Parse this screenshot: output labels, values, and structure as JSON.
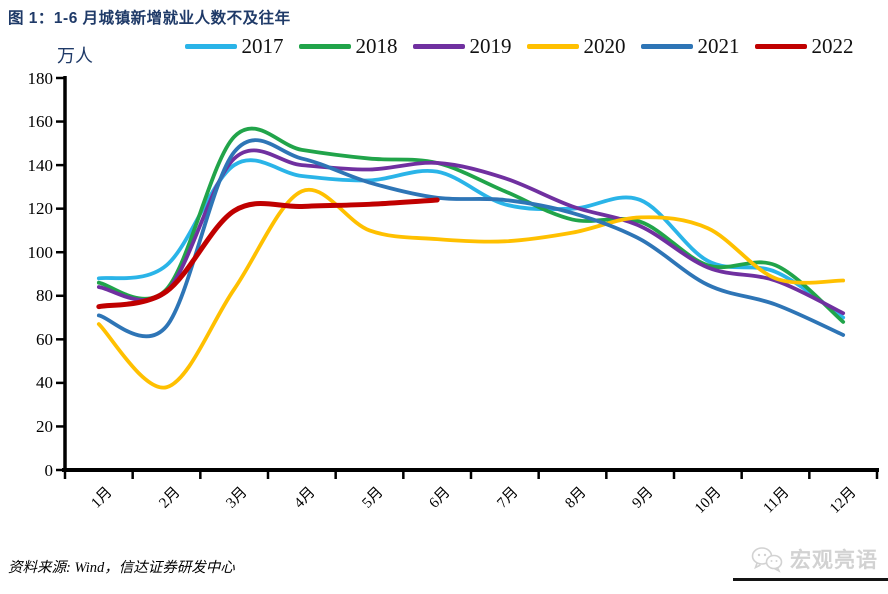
{
  "header": {
    "title": "图 1：1-6 月城镇新增就业人数不及往年"
  },
  "chart": {
    "unit_label": "万人",
    "y_ticks": [
      180,
      160,
      140,
      120,
      100,
      80,
      60,
      40,
      20,
      0
    ],
    "x_labels": [
      "1月",
      "2月",
      "3月",
      "4月",
      "5月",
      "6月",
      "7月",
      "8月",
      "9月",
      "10月",
      "11月",
      "12月"
    ]
  },
  "chart_data": {
    "type": "line",
    "title": "图 1：1-6 月城镇新增就业人数不及往年",
    "unit": "万人",
    "categories": [
      "1月",
      "2月",
      "3月",
      "4月",
      "5月",
      "6月",
      "7月",
      "8月",
      "9月",
      "10月",
      "11月",
      "12月"
    ],
    "series": [
      {
        "name": "2017",
        "color": "#2ab4e8",
        "values": [
          88,
          94,
          140,
          135,
          133,
          137,
          122,
          120,
          124,
          96,
          91,
          70
        ]
      },
      {
        "name": "2018",
        "color": "#21a44a",
        "values": [
          86,
          83,
          153,
          147,
          143,
          141,
          128,
          115,
          114,
          94,
          94,
          68
        ]
      },
      {
        "name": "2019",
        "color": "#7030a0",
        "values": [
          84,
          82,
          143,
          140,
          138,
          141,
          134,
          121,
          112,
          93,
          87,
          72
        ]
      },
      {
        "name": "2020",
        "color": "#ffc000",
        "values": [
          67,
          38,
          83,
          128,
          110,
          106,
          105,
          109,
          116,
          111,
          88,
          87
        ]
      },
      {
        "name": "2021",
        "color": "#2e75b6",
        "values": [
          71,
          66,
          146,
          143,
          132,
          125,
          124,
          118,
          106,
          85,
          76,
          62
        ]
      },
      {
        "name": "2022",
        "color": "#c00000",
        "values": [
          75,
          82,
          119,
          121,
          122,
          124
        ]
      }
    ],
    "ylim": [
      0,
      180
    ],
    "grid": false,
    "legend_position": "top"
  },
  "footer": {
    "source": "资料来源: Wind，信达证券研发中心",
    "watermark": "宏观亮语"
  }
}
